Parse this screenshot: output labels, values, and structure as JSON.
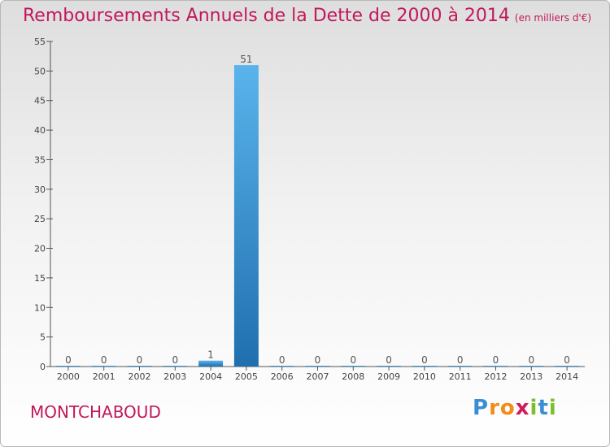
{
  "title": "Remboursements Annuels de la Dette de 2000 à 2014",
  "unit_label": "(en milliers d'€)",
  "commune": "MONTCHABOUD",
  "logo": {
    "text": "Proxiti",
    "letters": [
      "P",
      "r",
      "o",
      "x",
      "i",
      "t",
      "i"
    ],
    "colors": [
      "#3a8fd4",
      "#f28c1a",
      "#f28c1a",
      "#d11a5b",
      "#7cbf2a",
      "#3a8fd4",
      "#7cbf2a"
    ]
  },
  "chart_data": {
    "type": "bar",
    "categories": [
      "2000",
      "2001",
      "2002",
      "2003",
      "2004",
      "2005",
      "2006",
      "2007",
      "2008",
      "2009",
      "2010",
      "2011",
      "2012",
      "2013",
      "2014"
    ],
    "values": [
      0,
      0,
      0,
      0,
      1,
      51,
      0,
      0,
      0,
      0,
      0,
      0,
      0,
      0,
      0
    ],
    "data_labels": [
      "0",
      "0",
      "0",
      "0",
      "1",
      "51",
      "0",
      "0",
      "0",
      "0",
      "0",
      "0",
      "0",
      "0",
      "0"
    ],
    "ylim": [
      0,
      55
    ],
    "yticks": [
      0,
      5,
      10,
      15,
      20,
      25,
      30,
      35,
      40,
      45,
      50,
      55
    ],
    "grid": false,
    "bar_color": "#2e86c8",
    "title": "Remboursements Annuels de la Dette de 2000 à 2014",
    "xlabel": "",
    "ylabel": ""
  }
}
